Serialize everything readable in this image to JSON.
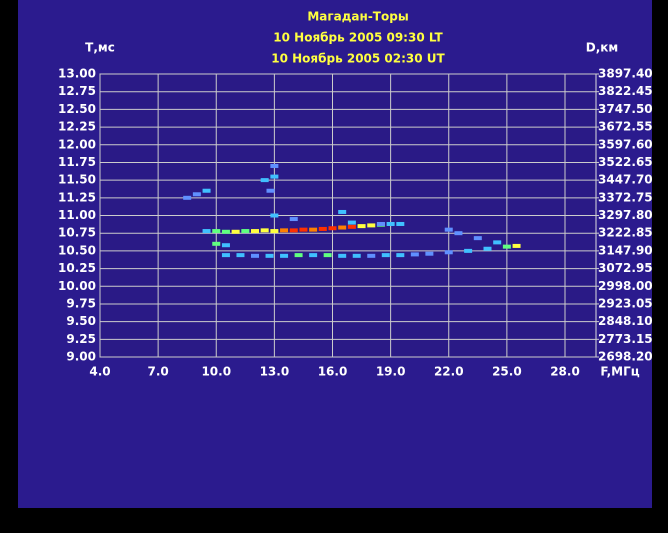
{
  "chart_data": {
    "type": "scatter",
    "title": "Магадан-Торы",
    "subtitle": [
      "10 Ноябрь 2005 09:30 LT",
      "10 Ноябрь 2005 02:30 UT"
    ],
    "y_label": "Т,мс",
    "y2_label": "D,км",
    "x_label": "F,МГц",
    "xlim": [
      4,
      29.6
    ],
    "ylim": [
      9,
      13
    ],
    "y2lim": [
      2698.2,
      3897.4
    ],
    "xticks": [
      {
        "value": 4,
        "label": "4.0"
      },
      {
        "value": 7,
        "label": "7.0"
      },
      {
        "value": 10,
        "label": "10.0"
      },
      {
        "value": 13,
        "label": "13.0"
      },
      {
        "value": 16,
        "label": "16.0"
      },
      {
        "value": 19,
        "label": "19.0"
      },
      {
        "value": 22,
        "label": "22.0"
      },
      {
        "value": 25,
        "label": "25.0"
      },
      {
        "value": 28,
        "label": "28.0"
      }
    ],
    "yticks": [
      {
        "value": 13,
        "label": "13.00"
      },
      {
        "value": 12.75,
        "label": "12.75"
      },
      {
        "value": 12.5,
        "label": "12.50"
      },
      {
        "value": 12.25,
        "label": "12.25"
      },
      {
        "value": 12,
        "label": "12.00"
      },
      {
        "value": 11.75,
        "label": "11.75"
      },
      {
        "value": 11.5,
        "label": "11.50"
      },
      {
        "value": 11.25,
        "label": "11.25"
      },
      {
        "value": 11,
        "label": "11.00"
      },
      {
        "value": 10.75,
        "label": "10.75"
      },
      {
        "value": 10.5,
        "label": "10.50"
      },
      {
        "value": 10.25,
        "label": "10.25"
      },
      {
        "value": 10,
        "label": "10.00"
      },
      {
        "value": 9.75,
        "label": "9.75"
      },
      {
        "value": 9.5,
        "label": "9.50"
      },
      {
        "value": 9.25,
        "label": "9.25"
      },
      {
        "value": 9,
        "label": "9.00"
      }
    ],
    "y2ticks": [
      {
        "value": 3897.4,
        "label": "3897.40"
      },
      {
        "value": 3822.45,
        "label": "3822.45"
      },
      {
        "value": 3747.5,
        "label": "3747.50"
      },
      {
        "value": 3672.55,
        "label": "3672.55"
      },
      {
        "value": 3597.6,
        "label": "3597.60"
      },
      {
        "value": 3522.65,
        "label": "3522.65"
      },
      {
        "value": 3447.7,
        "label": "3447.70"
      },
      {
        "value": 3372.75,
        "label": "3372.75"
      },
      {
        "value": 3297.8,
        "label": "3297.80"
      },
      {
        "value": 3222.85,
        "label": "3222.85"
      },
      {
        "value": 3147.9,
        "label": "3147.90"
      },
      {
        "value": 3072.95,
        "label": "3072.95"
      },
      {
        "value": 2998,
        "label": "2998.00"
      },
      {
        "value": 2923.05,
        "label": "2923.05"
      },
      {
        "value": 2848.1,
        "label": "2848.10"
      },
      {
        "value": 2773.15,
        "label": "2773.15"
      },
      {
        "value": 2698.2,
        "label": "2698.20"
      }
    ],
    "grid": true,
    "x": [
      9.5,
      10,
      10.5,
      11,
      11.5,
      12,
      12.5,
      13,
      13.5,
      14,
      14.5,
      15,
      15.5,
      16,
      16.5,
      17,
      17.5,
      18,
      18.5,
      19,
      19.5,
      10.5,
      11.25,
      12,
      12.75,
      13.5,
      14.25,
      15,
      15.75,
      16.5,
      17.25,
      18,
      18.75,
      19.5,
      20.25,
      21,
      22,
      23,
      24,
      25,
      25.5,
      24.5,
      23.5,
      22.5,
      22,
      10,
      10.5,
      12.5,
      13,
      13,
      12.8,
      8.5,
      9,
      9.5,
      13,
      14,
      16.5,
      17,
      18.5
    ],
    "values": [
      10.78,
      10.78,
      10.77,
      10.77,
      10.78,
      10.78,
      10.79,
      10.78,
      10.79,
      10.79,
      10.8,
      10.8,
      10.81,
      10.82,
      10.83,
      10.84,
      10.85,
      10.86,
      10.87,
      10.88,
      10.88,
      10.44,
      10.44,
      10.43,
      10.43,
      10.43,
      10.44,
      10.44,
      10.44,
      10.43,
      10.43,
      10.43,
      10.44,
      10.44,
      10.45,
      10.46,
      10.48,
      10.5,
      10.53,
      10.56,
      10.57,
      10.62,
      10.68,
      10.75,
      10.8,
      10.6,
      10.58,
      11.5,
      11.55,
      11.7,
      11.35,
      11.25,
      11.3,
      11.35,
      11,
      10.95,
      11.05,
      10.9,
      10.88
    ],
    "colors": [
      "#40c0ff",
      "#60ff80",
      "#60ff80",
      "#ffff40",
      "#60ff80",
      "#ffff40",
      "#ffff40",
      "#ffff40",
      "#ff8000",
      "#ff3000",
      "#ff3000",
      "#ff8000",
      "#ff3000",
      "#ff3000",
      "#ff8000",
      "#ff3000",
      "#ffff40",
      "#ffff40",
      "#60ff80",
      "#40c0ff",
      "#40c0ff",
      "#40c0ff",
      "#40c0ff",
      "#6090ff",
      "#40c0ff",
      "#40c0ff",
      "#60ff80",
      "#40c0ff",
      "#60ff80",
      "#40c0ff",
      "#40c0ff",
      "#6090ff",
      "#40c0ff",
      "#40c0ff",
      "#6090ff",
      "#6090ff",
      "#6090ff",
      "#40c0ff",
      "#40c0ff",
      "#60ff80",
      "#ffff40",
      "#40c0ff",
      "#6090ff",
      "#6090ff",
      "#6090ff",
      "#60ff80",
      "#40c0ff",
      "#40c0ff",
      "#40c0ff",
      "#6090ff",
      "#6090ff",
      "#6090ff",
      "#6090ff",
      "#40c0ff",
      "#40c0ff",
      "#6090ff",
      "#40c0ff",
      "#40c0ff",
      "#6090ff"
    ]
  }
}
